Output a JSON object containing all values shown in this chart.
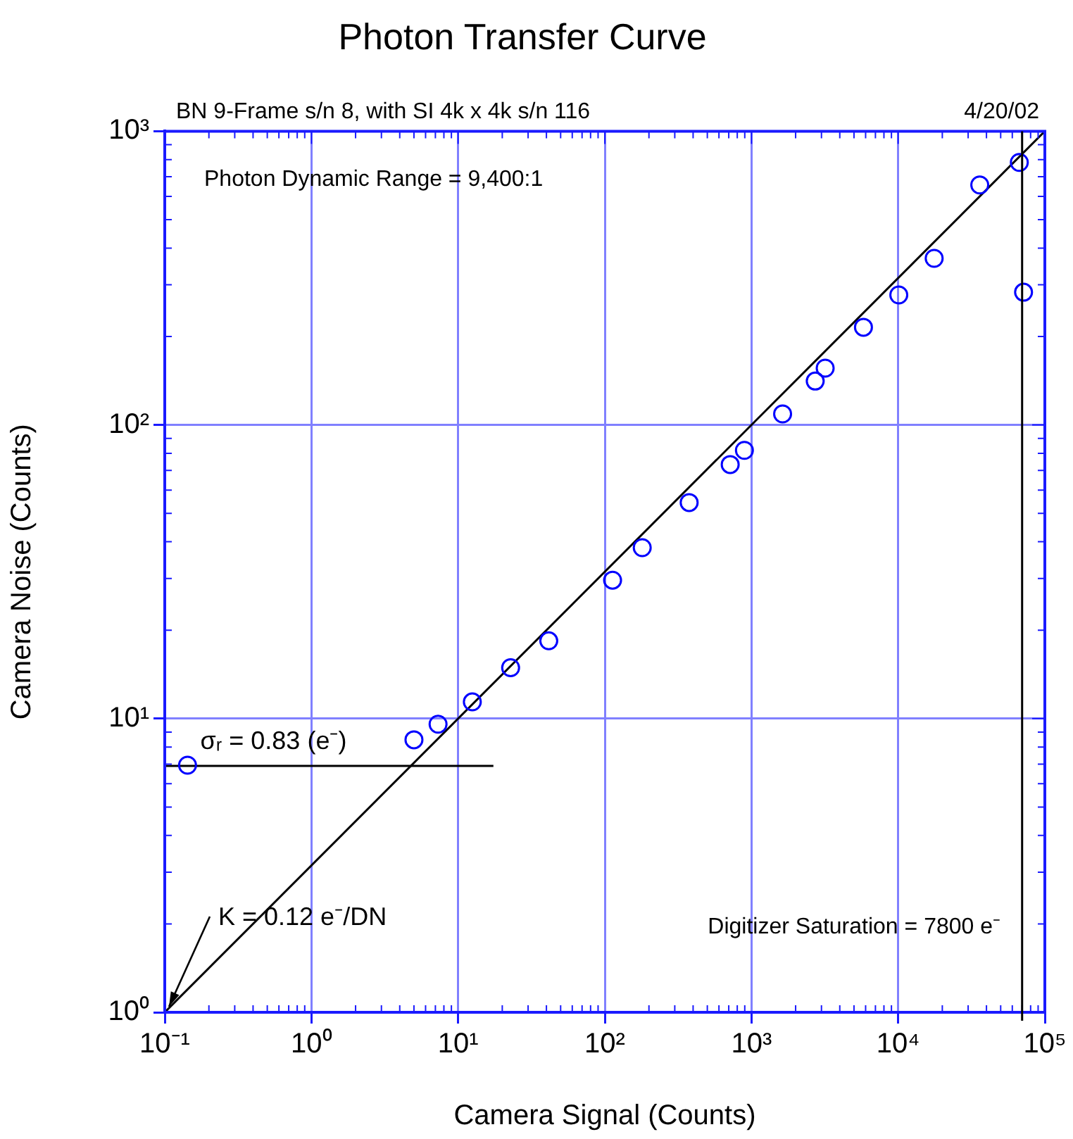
{
  "chart_data": {
    "type": "scatter",
    "title": "Photon Transfer Curve",
    "xlabel": "Camera Signal (Counts)",
    "ylabel": "Camera Noise (Counts)",
    "annotations": [
      "BN 9-Frame s/n 8, with SI 4k x 4k s/n 116",
      "4/20/02",
      "Photon Dynamic Range = 9,400:1",
      "Digitizer Saturation = 7800 e⁻",
      {
        "text": "σᵣ = 0.83 (e⁻)",
        "x": 0.14,
        "y": 6.9
      },
      {
        "text": "K = 0.12 e⁻/DN",
        "x": 0.1,
        "y": 1
      }
    ],
    "series": [
      {
        "type": "scatter",
        "color": "#0000ff",
        "marker": "circle",
        "x": [
          0.143,
          5.0,
          7.3,
          12.5,
          22.8,
          41.5,
          113,
          180,
          376,
          716,
          895,
          1630,
          2720,
          3180,
          5800,
          10100,
          17600,
          36000,
          67000,
          71600
        ],
        "values": [
          6.94,
          8.47,
          9.57,
          11.4,
          14.9,
          18.4,
          29.6,
          38.2,
          54.4,
          73.3,
          81.9,
          109,
          141,
          156,
          215,
          277,
          369,
          656,
          783,
          283
        ]
      },
      {
        "type": "line",
        "color": "#000000",
        "marker": "none",
        "x": [
          0.1,
          100000
        ],
        "values": [
          1,
          1000
        ]
      },
      {
        "type": "line",
        "color": "#000000",
        "marker": "none",
        "x": [
          0.1,
          17.4
        ],
        "values": [
          6.9,
          6.9
        ]
      }
    ],
    "ref_lines": [
      {
        "axis": "x",
        "value": 70000,
        "color": "#000000"
      }
    ],
    "log": "xy",
    "xlim": [
      0.1,
      100000
    ],
    "ylim": [
      1,
      1000
    ],
    "xticks": [
      {
        "value": 0.1,
        "label": "10⁻¹"
      },
      {
        "value": 1,
        "label": "10⁰"
      },
      {
        "value": 10,
        "label": "10¹"
      },
      {
        "value": 100,
        "label": "10²"
      },
      {
        "value": 1000,
        "label": "10³"
      },
      {
        "value": 10000,
        "label": "10⁴"
      },
      {
        "value": 100000,
        "label": "10⁵"
      }
    ],
    "yticks": [
      {
        "value": 1,
        "label": "10⁰"
      },
      {
        "value": 10,
        "label": "10¹"
      },
      {
        "value": 100,
        "label": "10²"
      },
      {
        "value": 1000,
        "label": "10³"
      }
    ],
    "grid": true,
    "legend": false
  }
}
